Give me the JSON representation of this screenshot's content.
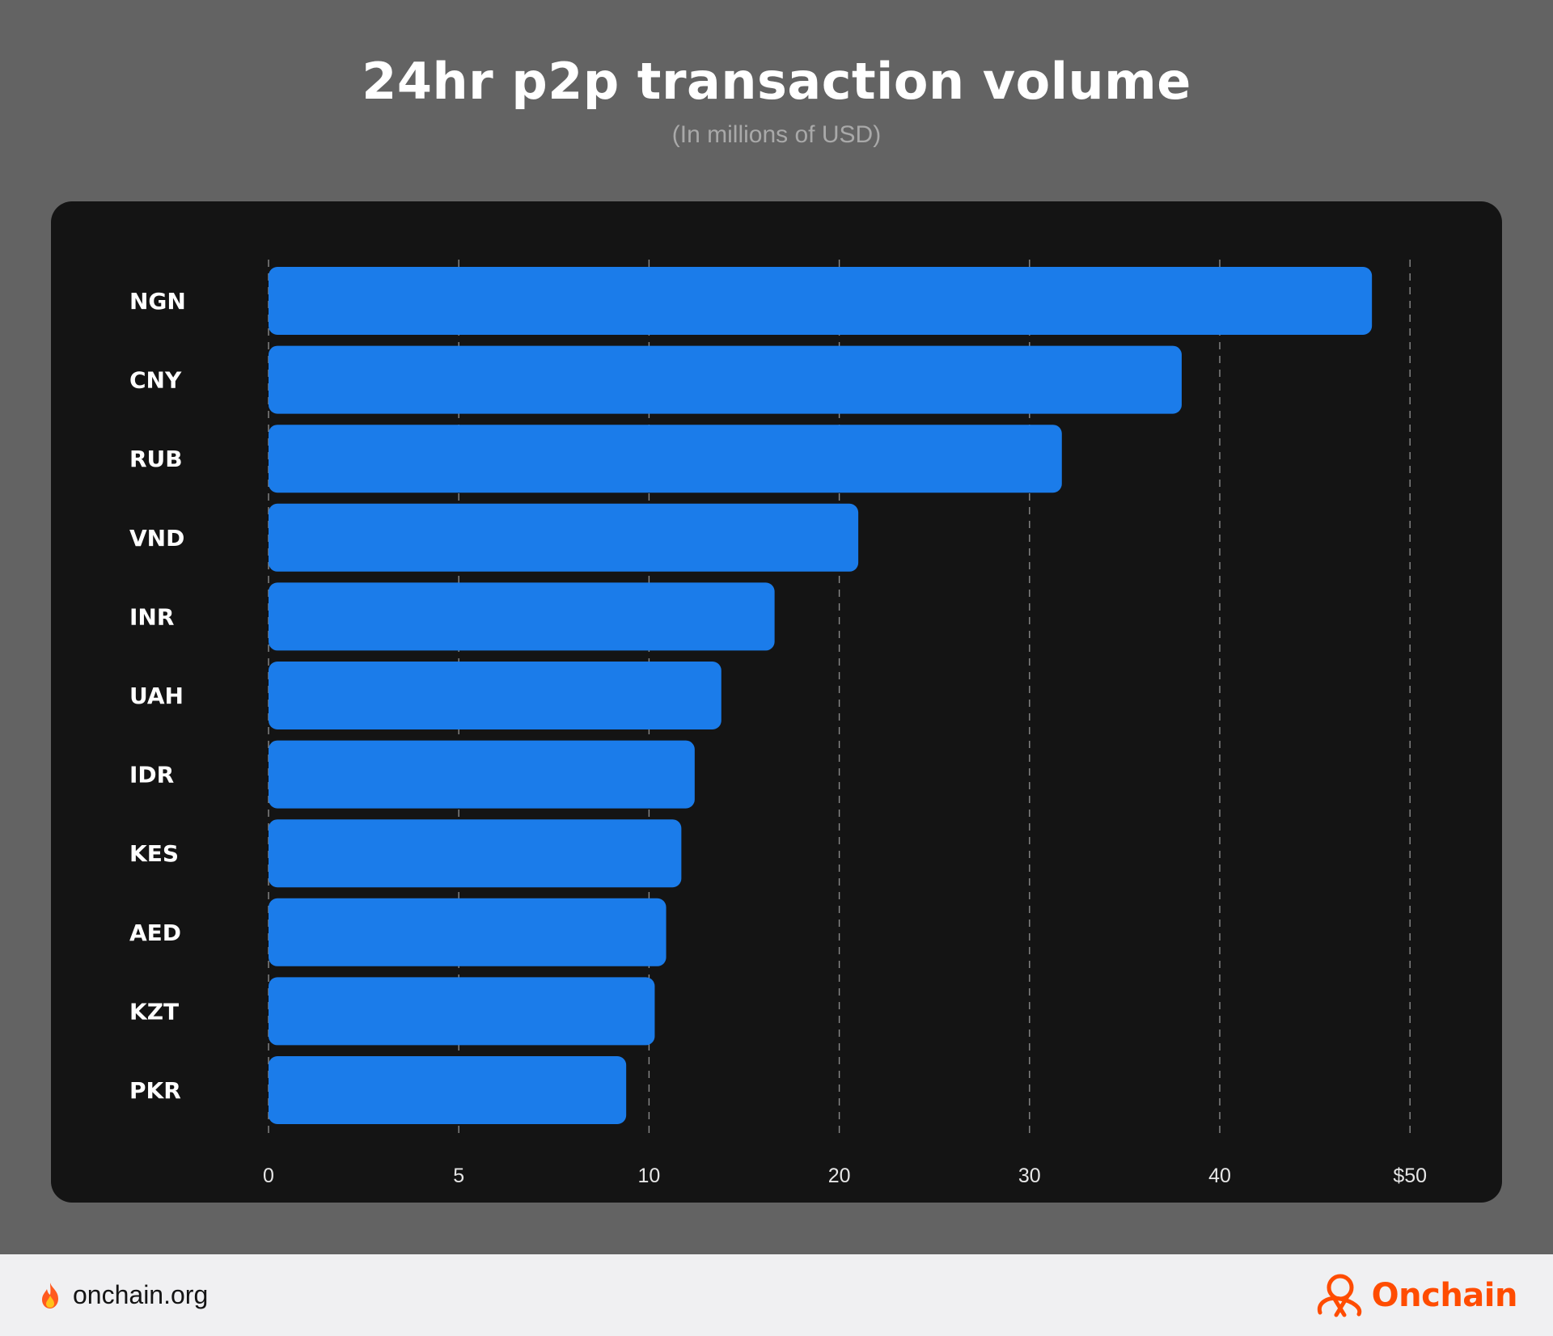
{
  "header": {
    "title": "24hr p2p transaction volume",
    "subtitle": "(In millions of USD)"
  },
  "chart_data": {
    "type": "bar",
    "orientation": "horizontal",
    "title": "24hr p2p transaction volume",
    "subtitle": "(In millions of USD)",
    "categories": [
      "NGN",
      "CNY",
      "RUB",
      "VND",
      "INR",
      "UAH",
      "IDR",
      "KES",
      "AED",
      "KZT",
      "PKR"
    ],
    "values": [
      48,
      38,
      31.7,
      21,
      16.6,
      13.8,
      12.4,
      11.7,
      10.9,
      10.3,
      9.4
    ],
    "ticks": [
      {
        "value": 0,
        "label": "0"
      },
      {
        "value": 5,
        "label": "5"
      },
      {
        "value": 10,
        "label": "10"
      },
      {
        "value": 20,
        "label": "20"
      },
      {
        "value": 30,
        "label": "30"
      },
      {
        "value": 40,
        "label": "40"
      },
      {
        "value": 50,
        "label": "$50"
      }
    ],
    "grid": "dashed vertical",
    "bar_color": "#1b7cea",
    "background_color": "#141414"
  },
  "footer": {
    "site": "onchain.org",
    "site_icon": "flame-icon",
    "brand": "Onchain",
    "brand_icon": "onchain-logo-icon",
    "brand_color": "#ff4c00"
  }
}
